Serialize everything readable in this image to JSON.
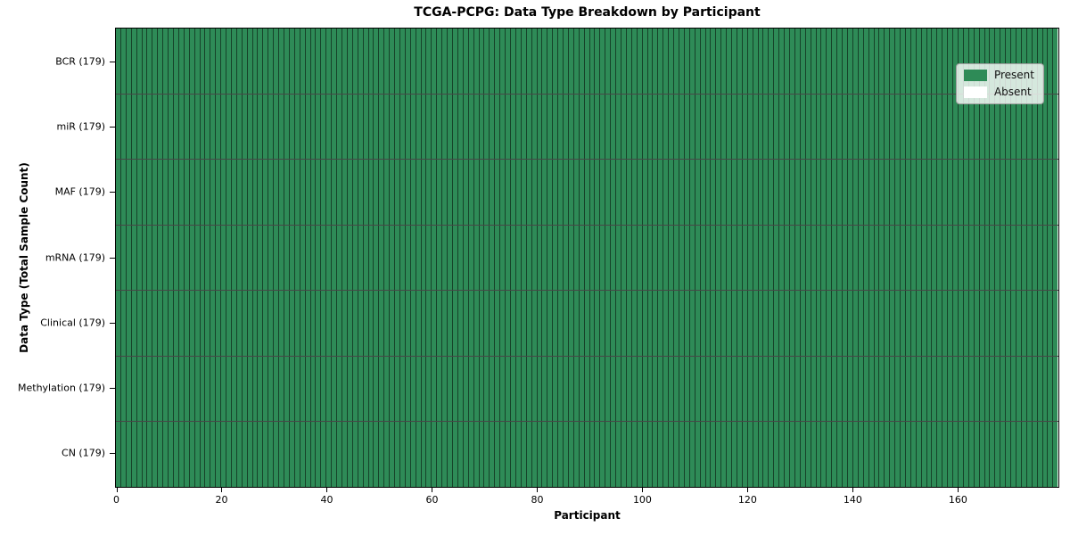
{
  "figure": {
    "title": "TCGA-PCPG: Data Type Breakdown by Participant",
    "xlabel": "Participant",
    "ylabel": "Data Type (Total Sample Count)"
  },
  "legend": {
    "items": [
      {
        "label": "Present",
        "color": "#2e8b57"
      },
      {
        "label": "Absent",
        "color": "#ffffff"
      }
    ]
  },
  "chart_data": {
    "type": "heatmap",
    "title": "TCGA-PCPG: Data Type Breakdown by Participant",
    "xlabel": "Participant",
    "ylabel": "Data Type (Total Sample Count)",
    "n_participants": 179,
    "x_range": [
      0,
      179
    ],
    "xticks": [
      0,
      20,
      40,
      60,
      80,
      100,
      120,
      140,
      160
    ],
    "rows": [
      {
        "name": "BCR",
        "label": "BCR (179)",
        "total": 179,
        "present": 179,
        "absent": 0
      },
      {
        "name": "miR",
        "label": "miR (179)",
        "total": 179,
        "present": 179,
        "absent": 0
      },
      {
        "name": "MAF",
        "label": "MAF (179)",
        "total": 179,
        "present": 179,
        "absent": 0
      },
      {
        "name": "mRNA",
        "label": "mRNA (179)",
        "total": 179,
        "present": 179,
        "absent": 0
      },
      {
        "name": "Clinical",
        "label": "Clinical (179)",
        "total": 179,
        "present": 179,
        "absent": 0
      },
      {
        "name": "Methylation",
        "label": "Methylation (179)",
        "total": 179,
        "present": 179,
        "absent": 0
      },
      {
        "name": "CN",
        "label": "CN (179)",
        "total": 179,
        "present": 179,
        "absent": 0
      }
    ],
    "colors": {
      "present": "#2e8b57",
      "absent": "#ffffff",
      "cell_edge": "rgba(0,0,0,0.52)"
    },
    "legend_entries": [
      "Present",
      "Absent"
    ],
    "legend_position": "upper right",
    "grid": "cell-edges"
  }
}
